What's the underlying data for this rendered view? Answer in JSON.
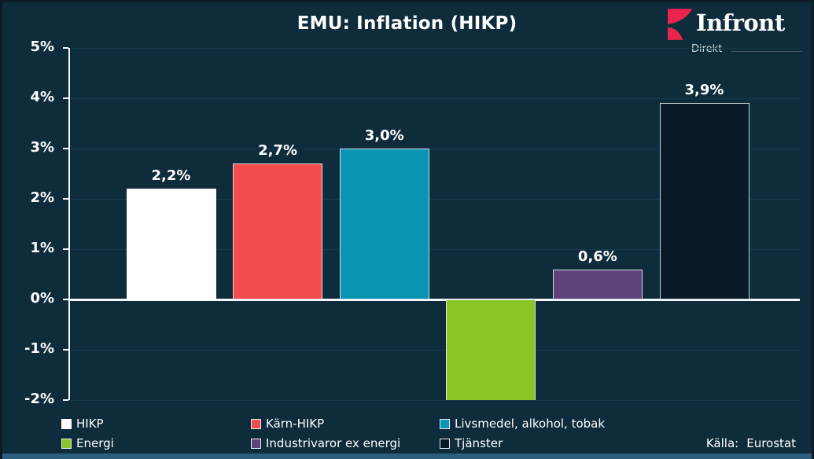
{
  "header": {
    "logo": {
      "brand": "Infront",
      "sub": "Direkt",
      "accent_color": "#e9254f"
    }
  },
  "source": {
    "label": "Källa:",
    "value": "Eurostat"
  },
  "colors": {
    "background": "#0e2c3c",
    "frame_border": "#0b1b27",
    "bottom_strip": "#2e5e7e",
    "axis": "#f5f8fa",
    "gridline": "#16394c",
    "text": "#ffffff"
  },
  "chart_data": {
    "type": "bar",
    "title": "EMU: Inflation (HIKP)",
    "categories": [
      "HIKP",
      "Kärn-HIKP",
      "Livsmedel, alkohol, tobak",
      "Energi",
      "Industrivaror ex energi",
      "Tjänster"
    ],
    "values": [
      2.2,
      2.7,
      3.0,
      -2.0,
      0.6,
      3.9
    ],
    "value_labels": [
      "2,2%",
      "2,7%",
      "3,0%",
      "",
      "0,6%",
      "3,9%"
    ],
    "clipped_at_axis_min": [
      false,
      false,
      false,
      true,
      false,
      false
    ],
    "bar_colors": [
      "#ffffff",
      "#f24c4c",
      "#0994b4",
      "#8ac427",
      "#5d4379",
      "#081a27"
    ],
    "ylim": [
      -2,
      5
    ],
    "ytick_labels": [
      "5%",
      "4%",
      "3%",
      "2%",
      "1%",
      "0%",
      "-1%",
      "-2%"
    ],
    "ytick_values": [
      5,
      4,
      3,
      2,
      1,
      0,
      -1,
      -2
    ],
    "grid": true,
    "legend_position": "bottom",
    "legend_rows": [
      [
        {
          "label": "HIKP",
          "color": "#ffffff"
        },
        {
          "label": "Kärn-HIKP",
          "color": "#f24c4c"
        },
        {
          "label": "Livsmedel, alkohol, tobak",
          "color": "#0994b4"
        }
      ],
      [
        {
          "label": "Energi",
          "color": "#8ac427"
        },
        {
          "label": "Industrivaror ex energi",
          "color": "#5d4379"
        },
        {
          "label": "Tjänster",
          "color": "#081a27"
        }
      ]
    ]
  }
}
